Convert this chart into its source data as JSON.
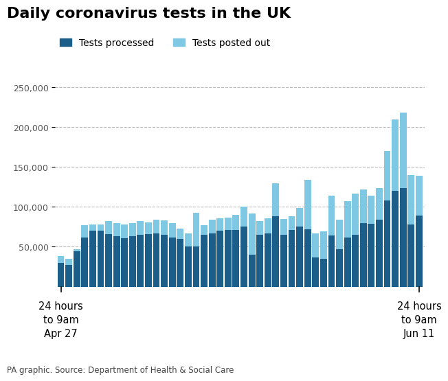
{
  "title": "Daily coronavirus tests in the UK",
  "legend": [
    "Tests processed",
    "Tests posted out"
  ],
  "color_processed": "#1b5e8a",
  "color_posted": "#7ec8e3",
  "xlabel_left": "24 hours\nto 9am\nApr 27",
  "xlabel_right": "24 hours\nto 9am\nJun 11",
  "source": "PA graphic. Source: Department of Health & Social Care",
  "ylim": [
    0,
    260000
  ],
  "yticks": [
    50000,
    100000,
    150000,
    200000,
    250000
  ],
  "ytick_labels": [
    "50,000",
    "100,000",
    "150,000",
    "200,000",
    "250,000"
  ],
  "background_color": "#ffffff",
  "tests_processed": [
    30000,
    27000,
    44000,
    62000,
    70000,
    70000,
    66000,
    63000,
    61000,
    63000,
    65000,
    66000,
    67000,
    65000,
    62000,
    60000,
    50000,
    50000,
    65000,
    67000,
    70000,
    71000,
    71000,
    75000,
    40000,
    65000,
    67000,
    88000,
    65000,
    71000,
    75000,
    72000,
    37000,
    35000,
    64000,
    47000,
    62000,
    65000,
    80000,
    79000,
    84000,
    108000,
    120000,
    124000,
    78000,
    89000
  ],
  "tests_posted": [
    8000,
    8000,
    3000,
    15000,
    8000,
    8000,
    16000,
    17000,
    17000,
    17000,
    17000,
    15000,
    17000,
    18000,
    18000,
    13000,
    17000,
    43000,
    12000,
    17000,
    16000,
    16000,
    19000,
    25000,
    52000,
    17000,
    19000,
    42000,
    20000,
    17000,
    24000,
    62000,
    30000,
    34000,
    50000,
    37000,
    45000,
    52000,
    42000,
    35000,
    40000,
    62000,
    90000,
    94000,
    62000,
    50000
  ]
}
